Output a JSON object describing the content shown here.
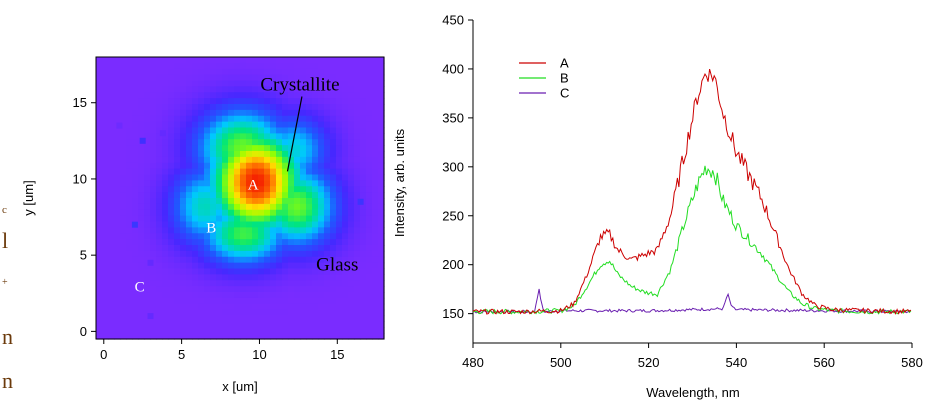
{
  "colors": {
    "bg": "#7a2cff",
    "series_A": "#cc0000",
    "series_B": "#22dd22",
    "series_C": "#6a1fb0",
    "cropped_text": "#6b3a0b"
  },
  "cropped_text": [
    "c",
    "l",
    "+",
    "n",
    "n"
  ],
  "chart_data": [
    {
      "type": "heatmap",
      "xlabel": "x [um]",
      "ylabel": "y [um]",
      "xlim": [
        -0.5,
        18
      ],
      "ylim": [
        -0.5,
        18
      ],
      "xticks": [
        "0",
        "5",
        "10",
        "15"
      ],
      "yticks": [
        "0",
        "5",
        "10",
        "15"
      ],
      "colormap": "rainbow (violet low, red high)",
      "annotations": [
        {
          "label": "Crystallite",
          "x": 12.6,
          "y": 15.8,
          "arrow_to": [
            11.8,
            10.5
          ]
        },
        {
          "label": "A",
          "x": 9.6,
          "y": 9.3
        },
        {
          "label": "B",
          "x": 6.9,
          "y": 6.5
        },
        {
          "label": "C",
          "x": 2.3,
          "y": 2.6
        },
        {
          "label": "Glass",
          "x": 15.0,
          "y": 4.0
        }
      ],
      "intensity_model": {
        "centers": [
          {
            "x": 9.8,
            "y": 9.8,
            "sx": 2.1,
            "sy": 2.4,
            "w": 1.0
          },
          {
            "x": 8.9,
            "y": 12.0,
            "sx": 2.1,
            "sy": 1.9,
            "w": 0.62
          },
          {
            "x": 12.4,
            "y": 8.2,
            "sx": 1.8,
            "sy": 1.9,
            "w": 0.62
          },
          {
            "x": 9.0,
            "y": 6.4,
            "sx": 2.0,
            "sy": 1.5,
            "w": 0.58
          },
          {
            "x": 12.2,
            "y": 11.9,
            "sx": 1.6,
            "sy": 1.6,
            "w": 0.42
          },
          {
            "x": 6.5,
            "y": 8.2,
            "sx": 1.6,
            "sy": 1.9,
            "w": 0.45
          }
        ],
        "specks": [
          {
            "x": 1.0,
            "y": 13.5,
            "v": 0.03
          },
          {
            "x": 2.5,
            "y": 12.5,
            "v": 0.14
          },
          {
            "x": 3.8,
            "y": 13.0,
            "v": 0.05
          },
          {
            "x": 2.0,
            "y": 7.0,
            "v": 0.16
          },
          {
            "x": 3.0,
            "y": 4.5,
            "v": 0.05
          },
          {
            "x": 16.5,
            "y": 8.5,
            "v": 0.15
          },
          {
            "x": 3.0,
            "y": 1.0,
            "v": 0.05
          }
        ]
      }
    },
    {
      "type": "line",
      "xlabel": "Wavelength, nm",
      "ylabel": "Intensity, arb. units",
      "xlim": [
        480,
        580
      ],
      "ylim": [
        120,
        450
      ],
      "xticks": [
        "480",
        "500",
        "520",
        "540",
        "560",
        "580"
      ],
      "yticks": [
        "150",
        "200",
        "250",
        "300",
        "350",
        "400",
        "450"
      ],
      "legend_position": "top-left",
      "series": [
        {
          "name": "A",
          "x": [
            480,
            490,
            500,
            503,
            506,
            509,
            511,
            513,
            516,
            519,
            522,
            525,
            528,
            531,
            533,
            535,
            537,
            540,
            543,
            546,
            549,
            552,
            555,
            558,
            562,
            570,
            580
          ],
          "values": [
            152,
            152,
            153,
            160,
            190,
            228,
            232,
            215,
            205,
            210,
            215,
            250,
            310,
            370,
            397,
            392,
            355,
            315,
            290,
            265,
            230,
            195,
            170,
            158,
            154,
            153,
            152
          ]
        },
        {
          "name": "B",
          "x": [
            480,
            490,
            500,
            503,
            506,
            509,
            511,
            513,
            516,
            519,
            522,
            525,
            528,
            531,
            533,
            535,
            537,
            540,
            543,
            546,
            549,
            552,
            555,
            558,
            562,
            570,
            580
          ],
          "values": [
            152,
            152,
            153,
            158,
            178,
            200,
            205,
            190,
            178,
            172,
            170,
            195,
            240,
            280,
            300,
            295,
            265,
            240,
            225,
            210,
            190,
            172,
            160,
            155,
            153,
            152,
            152
          ]
        },
        {
          "name": "C",
          "x": [
            480,
            490,
            494,
            495,
            496,
            500,
            520,
            537,
            538,
            539,
            540,
            560,
            580
          ],
          "values": [
            152,
            152,
            152,
            175,
            152,
            153,
            153,
            155,
            170,
            156,
            154,
            153,
            152
          ]
        }
      ]
    }
  ]
}
